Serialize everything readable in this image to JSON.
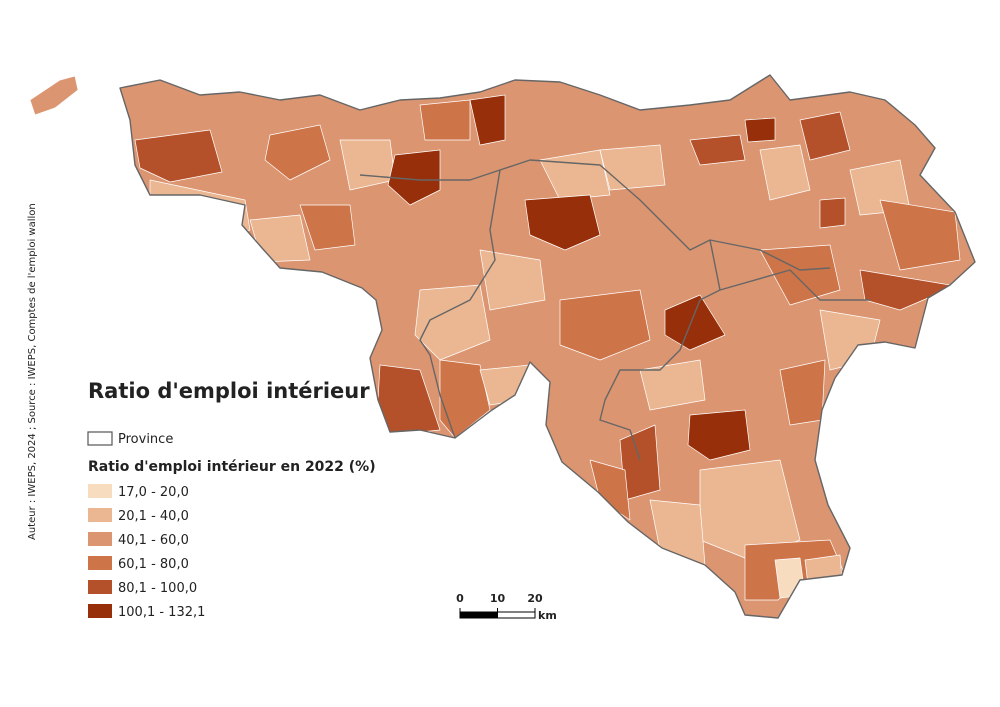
{
  "title": "Ratio d'emploi intérieur",
  "credit": "Auteur : IWEPS, 2024 ; Source : IWEPS, Comptes de l'emploi wallon",
  "legend": {
    "province_label": "Province",
    "subtitle": "Ratio d'emploi intérieur en 2022 (%)",
    "classes": [
      {
        "label": "17,0 - 20,0",
        "color": "#f8dcc0"
      },
      {
        "label": "20,1 - 40,0",
        "color": "#ebb792"
      },
      {
        "label": "40,1 - 60,0",
        "color": "#dc9571"
      },
      {
        "label": "60,1 - 80,0",
        "color": "#cd7449"
      },
      {
        "label": "80,1 - 100,0",
        "color": "#b4512a"
      },
      {
        "label": "100,1 - 132,1",
        "color": "#962f0a"
      }
    ]
  },
  "scale_bar": {
    "ticks": [
      0,
      10,
      20
    ],
    "unit": "km"
  }
}
